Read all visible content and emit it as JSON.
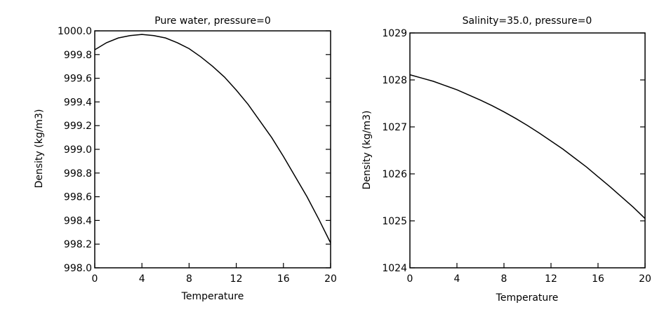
{
  "chart_data": [
    {
      "type": "line",
      "title": "Pure water, pressure=0",
      "xlabel": "Temperature",
      "ylabel": "Density (kg/m3)",
      "xlim": [
        0,
        20
      ],
      "ylim": [
        998.0,
        1000.0
      ],
      "xticks": [
        0,
        4,
        8,
        12,
        16,
        20
      ],
      "xtick_labels": [
        "0",
        "4",
        "8",
        "12",
        "16",
        "20"
      ],
      "yticks": [
        998.0,
        998.2,
        998.4,
        998.6,
        998.8,
        999.0,
        999.2,
        999.4,
        999.6,
        999.8,
        1000.0
      ],
      "ytick_labels": [
        "998.0",
        "998.2",
        "998.4",
        "998.6",
        "998.8",
        "999.0",
        "999.2",
        "999.4",
        "999.6",
        "999.8",
        "1000.0"
      ],
      "grid": false,
      "series": [
        {
          "x": [
            0,
            1,
            2,
            3,
            4,
            5,
            6,
            7,
            8,
            9,
            10,
            11,
            12,
            13,
            14,
            15,
            16,
            17,
            18,
            19,
            20
          ],
          "values": [
            999.84,
            999.9,
            999.94,
            999.96,
            999.97,
            999.96,
            999.94,
            999.9,
            999.85,
            999.78,
            999.7,
            999.61,
            999.5,
            999.38,
            999.24,
            999.1,
            998.94,
            998.77,
            998.6,
            998.41,
            998.21
          ]
        }
      ]
    },
    {
      "type": "line",
      "title": "Salinity=35.0, pressure=0",
      "xlabel": "Temperature",
      "ylabel": "Density (kg/m3)",
      "xlim": [
        0,
        20
      ],
      "ylim": [
        1024,
        1029
      ],
      "xticks": [
        0,
        4,
        8,
        12,
        16,
        20
      ],
      "xtick_labels": [
        "0",
        "4",
        "8",
        "12",
        "16",
        "20"
      ],
      "yticks": [
        1024,
        1025,
        1026,
        1027,
        1028,
        1029
      ],
      "ytick_labels": [
        "1024",
        "1025",
        "1026",
        "1027",
        "1028",
        "1029"
      ],
      "grid": false,
      "series": [
        {
          "x": [
            0,
            1,
            2,
            3,
            4,
            5,
            6,
            7,
            8,
            9,
            10,
            11,
            12,
            13,
            14,
            15,
            16,
            17,
            18,
            19,
            20
          ],
          "values": [
            1028.11,
            1028.04,
            1027.97,
            1027.88,
            1027.79,
            1027.68,
            1027.57,
            1027.45,
            1027.32,
            1027.18,
            1027.03,
            1026.87,
            1026.7,
            1026.53,
            1026.34,
            1026.15,
            1025.94,
            1025.73,
            1025.51,
            1025.29,
            1025.05
          ]
        }
      ]
    }
  ]
}
